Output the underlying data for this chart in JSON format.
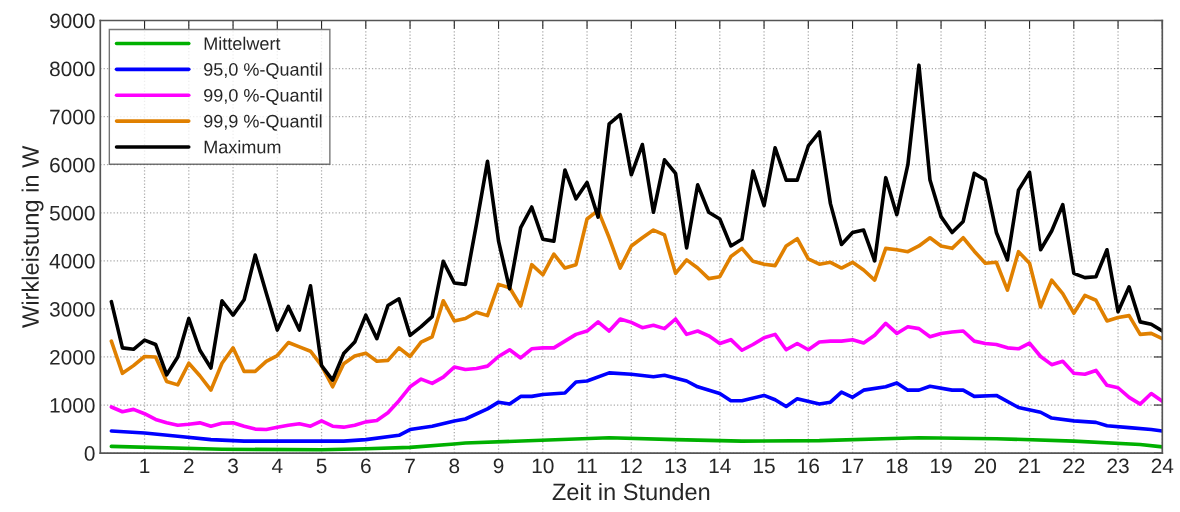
{
  "chart_data": {
    "type": "line",
    "xlabel": "Zeit in Stunden",
    "ylabel": "Wirkleistung in W",
    "x": [
      0.25,
      0.5,
      0.75,
      1,
      1.25,
      1.5,
      1.75,
      2,
      2.25,
      2.5,
      2.75,
      3,
      3.25,
      3.5,
      3.75,
      4,
      4.25,
      4.5,
      4.75,
      5,
      5.25,
      5.5,
      5.75,
      6,
      6.25,
      6.5,
      6.75,
      7,
      7.25,
      7.5,
      7.75,
      8,
      8.25,
      8.5,
      8.75,
      9,
      9.25,
      9.5,
      9.75,
      10,
      10.25,
      10.5,
      10.75,
      11,
      11.25,
      11.5,
      11.75,
      12,
      12.25,
      12.5,
      12.75,
      13,
      13.25,
      13.5,
      13.75,
      14,
      14.25,
      14.5,
      14.75,
      15,
      15.25,
      15.5,
      15.75,
      16,
      16.25,
      16.5,
      16.75,
      17,
      17.25,
      17.5,
      17.75,
      18,
      18.25,
      18.5,
      18.75,
      19,
      19.25,
      19.5,
      19.75,
      20,
      20.25,
      20.5,
      20.75,
      21,
      21.25,
      21.5,
      21.75,
      22,
      22.25,
      22.5,
      22.75,
      23,
      23.25,
      23.5,
      23.75,
      24
    ],
    "series": [
      {
        "name": "Mittelwert",
        "color": "#00b000",
        "x": [
          0.25,
          2.75,
          5,
          6,
          7,
          8,
          8.25,
          11.5,
          13,
          14.5,
          16.25,
          18.5,
          20.25,
          22,
          23.5,
          24
        ],
        "values": [
          140,
          80,
          70,
          90,
          120,
          190,
          210,
          320,
          280,
          250,
          260,
          320,
          300,
          250,
          180,
          130
        ]
      },
      {
        "name": "95,0 %-Quantil",
        "color": "#0000ff",
        "x": [
          0.25,
          1,
          1.75,
          2.5,
          3.25,
          4,
          4.75,
          5.5,
          6,
          6.75,
          7,
          7.5,
          8,
          8.25,
          8.75,
          9,
          9.25,
          9.5,
          9.75,
          10,
          10.5,
          10.75,
          11,
          11.5,
          12,
          12.5,
          12.75,
          13.25,
          13.5,
          14,
          14.25,
          14.5,
          15,
          15.25,
          15.5,
          15.75,
          16.25,
          16.5,
          16.75,
          17,
          17.25,
          17.75,
          18,
          18.25,
          18.5,
          18.75,
          19.25,
          19.5,
          19.75,
          20.25,
          20.75,
          21.25,
          21.5,
          22,
          22.5,
          22.75,
          23.25,
          23.75,
          24
        ],
        "values": [
          460,
          420,
          350,
          280,
          250,
          250,
          250,
          250,
          280,
          370,
          490,
          560,
          670,
          710,
          920,
          1060,
          1020,
          1180,
          1180,
          1220,
          1250,
          1480,
          1500,
          1670,
          1640,
          1590,
          1620,
          1500,
          1380,
          1240,
          1090,
          1090,
          1200,
          1110,
          970,
          1130,
          1020,
          1060,
          1270,
          1160,
          1310,
          1380,
          1460,
          1310,
          1310,
          1390,
          1310,
          1310,
          1180,
          1200,
          950,
          850,
          730,
          670,
          640,
          570,
          530,
          490,
          460
        ]
      },
      {
        "name": "99,0 %-Quantil",
        "color": "#ff00ff",
        "values": [
          960,
          860,
          910,
          820,
          700,
          630,
          580,
          600,
          630,
          560,
          620,
          630,
          560,
          500,
          490,
          540,
          580,
          610,
          560,
          670,
          560,
          540,
          580,
          650,
          680,
          840,
          1090,
          1380,
          1540,
          1450,
          1580,
          1790,
          1740,
          1760,
          1810,
          2010,
          2150,
          1980,
          2170,
          2190,
          2190,
          2330,
          2470,
          2540,
          2730,
          2540,
          2790,
          2720,
          2610,
          2660,
          2590,
          2790,
          2470,
          2540,
          2440,
          2280,
          2360,
          2140,
          2260,
          2400,
          2470,
          2150,
          2280,
          2150,
          2310,
          2330,
          2330,
          2360,
          2290,
          2450,
          2700,
          2490,
          2630,
          2590,
          2420,
          2490,
          2520,
          2540,
          2330,
          2280,
          2260,
          2190,
          2170,
          2290,
          2010,
          1840,
          1910,
          1660,
          1640,
          1720,
          1410,
          1360,
          1160,
          1020,
          1240,
          1080
        ]
      },
      {
        "name": "99,9 %-Quantil",
        "color": "#e08000",
        "values": [
          2330,
          1660,
          1820,
          2010,
          2000,
          1490,
          1420,
          1870,
          1610,
          1310,
          1870,
          2190,
          1700,
          1700,
          1910,
          2030,
          2300,
          2210,
          2120,
          1820,
          1380,
          1860,
          2020,
          2080,
          1910,
          1930,
          2190,
          2010,
          2310,
          2420,
          3170,
          2750,
          2800,
          2930,
          2860,
          3510,
          3440,
          3060,
          3920,
          3710,
          4140,
          3850,
          3920,
          4870,
          5050,
          4480,
          3850,
          4310,
          4480,
          4640,
          4540,
          3740,
          4020,
          3850,
          3630,
          3670,
          4090,
          4260,
          3990,
          3930,
          3900,
          4310,
          4460,
          4040,
          3930,
          3970,
          3850,
          3970,
          3810,
          3600,
          4260,
          4230,
          4190,
          4310,
          4480,
          4310,
          4260,
          4480,
          4200,
          3950,
          3970,
          3390,
          4190,
          3950,
          3040,
          3600,
          3320,
          2910,
          3280,
          3180,
          2750,
          2820,
          2860,
          2470,
          2490,
          2380
        ]
      },
      {
        "name": "Maximum",
        "color": "#000000",
        "values": [
          3150,
          2190,
          2160,
          2350,
          2260,
          1630,
          2000,
          2800,
          2140,
          1770,
          3170,
          2870,
          3190,
          4120,
          3330,
          2560,
          3050,
          2560,
          3480,
          1820,
          1520,
          2070,
          2310,
          2870,
          2380,
          3070,
          3210,
          2450,
          2630,
          2840,
          3990,
          3540,
          3510,
          4760,
          6070,
          4410,
          3420,
          4690,
          5120,
          4450,
          4410,
          5890,
          5290,
          5630,
          4910,
          6850,
          7040,
          5790,
          6420,
          5010,
          6100,
          5820,
          4270,
          5580,
          5010,
          4870,
          4310,
          4450,
          5870,
          5150,
          6350,
          5680,
          5680,
          6390,
          6680,
          5190,
          4340,
          4590,
          4640,
          4000,
          5730,
          4960,
          6000,
          8070,
          5680,
          4920,
          4590,
          4820,
          5820,
          5680,
          4590,
          4020,
          5470,
          5840,
          4230,
          4620,
          5170,
          3740,
          3650,
          3670,
          4230,
          2940,
          3460,
          2730,
          2680,
          2540
        ]
      }
    ],
    "xlim": [
      0,
      24
    ],
    "xticks": [
      1,
      2,
      3,
      4,
      5,
      6,
      7,
      8,
      9,
      10,
      11,
      12,
      13,
      14,
      15,
      16,
      17,
      18,
      19,
      20,
      21,
      22,
      23,
      24
    ],
    "ylim": [
      0,
      9000
    ],
    "yticks": [
      0,
      1000,
      2000,
      3000,
      4000,
      5000,
      6000,
      7000,
      8000,
      9000
    ],
    "grid": true,
    "legend": "top left",
    "marker": "none",
    "line_style": "solid"
  }
}
